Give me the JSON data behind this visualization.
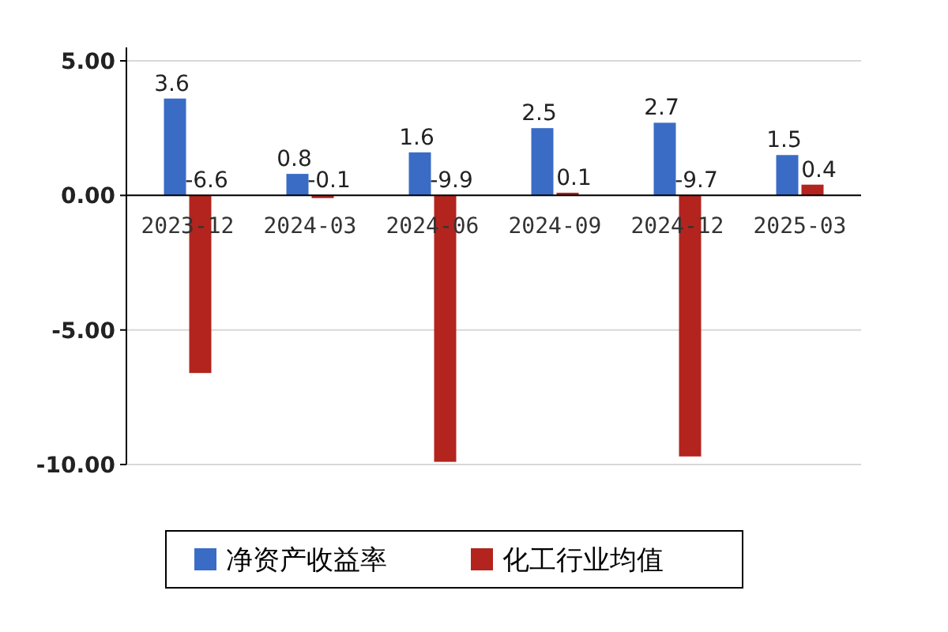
{
  "chart_data": {
    "type": "bar",
    "categories": [
      "2023-12",
      "2024-03",
      "2024-06",
      "2024-09",
      "2024-12",
      "2025-03"
    ],
    "series": [
      {
        "name": "净资产收益率",
        "color": "#3a6cc6",
        "values": [
          3.6,
          0.8,
          1.6,
          2.5,
          2.7,
          1.5
        ]
      },
      {
        "name": "化工行业均值",
        "color": "#b3241e",
        "values": [
          -6.6,
          -0.1,
          -9.9,
          0.1,
          -9.7,
          0.4
        ]
      }
    ],
    "ylim": [
      -10,
      5.5
    ],
    "yticks": [
      {
        "value": 5,
        "label": "5.00"
      },
      {
        "value": 0,
        "label": "0.00"
      },
      {
        "value": -5,
        "label": "-5.00"
      },
      {
        "value": -10,
        "label": "-10.00"
      }
    ],
    "grid": "y",
    "data_labels": true,
    "legend": "bottom"
  }
}
